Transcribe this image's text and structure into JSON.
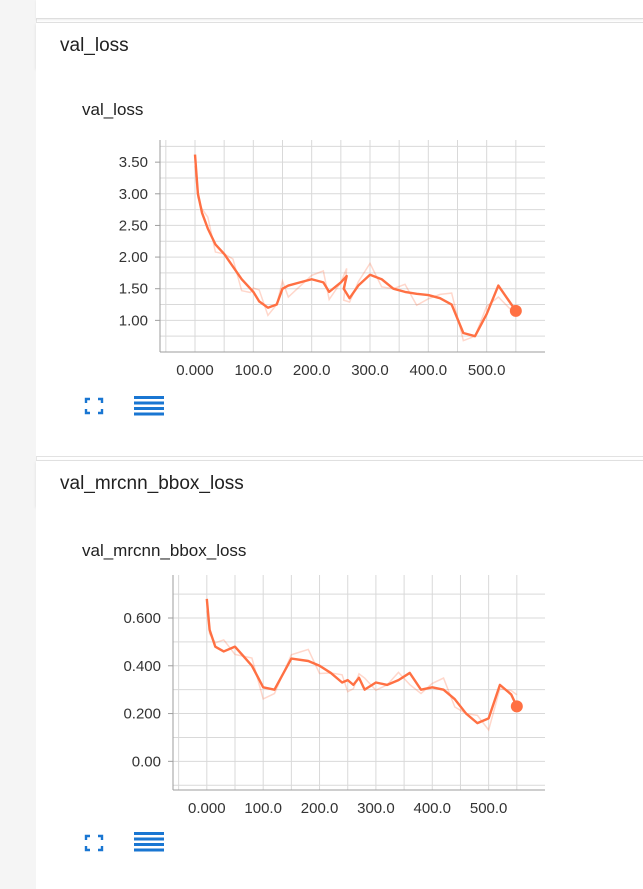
{
  "sections": [
    {
      "header": "val_loss",
      "card_title": "val_loss"
    },
    {
      "header": "val_mrcnn_bbox_loss",
      "card_title": "val_mrcnn_bbox_loss"
    }
  ],
  "colors": {
    "accent": "#ff7043",
    "icon_blue": "#1976d2",
    "grid": "#d9d9d9"
  },
  "icons": [
    "fullscreen-expand-icon",
    "data-table-icon"
  ],
  "chart_data": [
    {
      "type": "line",
      "title": "val_loss",
      "xlabel": "",
      "ylabel": "",
      "x_ticks": [
        "0.000",
        "100.0",
        "200.0",
        "300.0",
        "400.0",
        "500.0"
      ],
      "y_ticks": [
        "1.00",
        "1.50",
        "2.00",
        "2.50",
        "3.00",
        "3.50"
      ],
      "xlim": [
        -60,
        600
      ],
      "ylim": [
        0.5,
        3.85
      ],
      "grid": true,
      "series": [
        {
          "name": "",
          "smoothed": true,
          "x": [
            0,
            5,
            12,
            22,
            35,
            50,
            65,
            80,
            95,
            100,
            110,
            125,
            140,
            150,
            160,
            180,
            200,
            220,
            230,
            250,
            260,
            255,
            265,
            280,
            300,
            320,
            340,
            360,
            380,
            400,
            420,
            440,
            460,
            480,
            500,
            520,
            550
          ],
          "y": [
            3.62,
            3.0,
            2.7,
            2.45,
            2.2,
            2.05,
            1.85,
            1.65,
            1.5,
            1.45,
            1.3,
            1.2,
            1.25,
            1.5,
            1.55,
            1.6,
            1.65,
            1.6,
            1.45,
            1.6,
            1.7,
            1.5,
            1.35,
            1.55,
            1.72,
            1.65,
            1.5,
            1.45,
            1.42,
            1.4,
            1.35,
            1.25,
            0.8,
            0.75,
            1.1,
            1.55,
            1.15
          ]
        }
      ]
    },
    {
      "type": "line",
      "title": "val_mrcnn_bbox_loss",
      "xlabel": "",
      "ylabel": "",
      "x_ticks": [
        "0.000",
        "100.0",
        "200.0",
        "300.0",
        "400.0",
        "500.0"
      ],
      "y_ticks": [
        "0.00",
        "0.200",
        "0.400",
        "0.600"
      ],
      "xlim": [
        -60,
        600
      ],
      "ylim": [
        -0.12,
        0.78
      ],
      "grid": true,
      "series": [
        {
          "name": "",
          "smoothed": true,
          "x": [
            0,
            5,
            15,
            30,
            50,
            65,
            80,
            100,
            120,
            150,
            180,
            200,
            220,
            240,
            250,
            260,
            270,
            280,
            300,
            320,
            340,
            360,
            380,
            400,
            420,
            440,
            460,
            480,
            500,
            520,
            540,
            550
          ],
          "y": [
            0.68,
            0.55,
            0.48,
            0.46,
            0.48,
            0.44,
            0.4,
            0.31,
            0.3,
            0.43,
            0.42,
            0.4,
            0.37,
            0.33,
            0.34,
            0.32,
            0.35,
            0.3,
            0.33,
            0.32,
            0.34,
            0.37,
            0.3,
            0.31,
            0.3,
            0.26,
            0.2,
            0.16,
            0.18,
            0.32,
            0.28,
            0.23
          ]
        }
      ]
    }
  ]
}
